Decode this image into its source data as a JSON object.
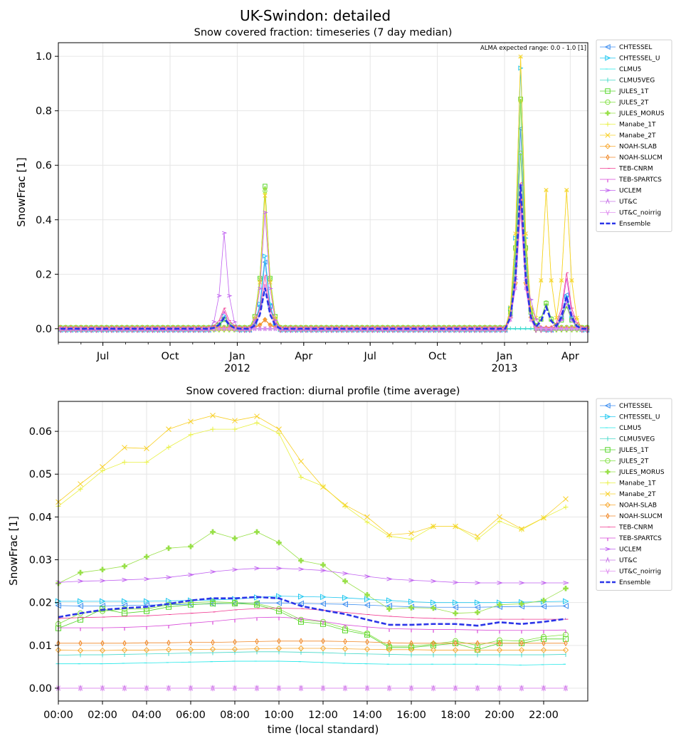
{
  "suptitle": "UK-Swindon: detailed",
  "colors": {
    "CHTESSEL": "#3d8ef0",
    "CHTESSEL_U": "#22c8f0",
    "CLMU5": "#22e8e8",
    "CLMU5VEG": "#46d8c8",
    "JULES_1T": "#56d62a",
    "JULES_2T": "#80e040",
    "JULES_MORUS": "#98e048",
    "Manabe_1T": "#e8f040",
    "Manabe_2T": "#f8d028",
    "NOAH-SLAB": "#f8a830",
    "NOAH-SLUCM": "#f08828",
    "TEB-CNRM": "#f03890",
    "TEB-SPARTCS": "#d848d8",
    "UCLEM": "#c060f0",
    "UT&C": "#c878e8",
    "UT&C_noirrig": "#e090f0",
    "Ensemble": "#2b35e8",
    "grid": "#e6e6e6",
    "axis": "#000000"
  },
  "legend": [
    {
      "name": "CHTESSEL",
      "icon": "triangle-left-marker"
    },
    {
      "name": "CHTESSEL_U",
      "icon": "triangle-right-marker"
    },
    {
      "name": "CLMU5",
      "icon": "tickleft-marker"
    },
    {
      "name": "CLMU5VEG",
      "icon": "vline-marker"
    },
    {
      "name": "JULES_1T",
      "icon": "square-marker"
    },
    {
      "name": "JULES_2T",
      "icon": "circle-marker"
    },
    {
      "name": "JULES_MORUS",
      "icon": "plus-filled-marker"
    },
    {
      "name": "Manabe_1T",
      "icon": "plus-marker"
    },
    {
      "name": "Manabe_2T",
      "icon": "x-marker"
    },
    {
      "name": "NOAH-SLAB",
      "icon": "diamond-marker"
    },
    {
      "name": "NOAH-SLUCM",
      "icon": "thin-diamond-marker"
    },
    {
      "name": "TEB-CNRM",
      "icon": "tickright-marker"
    },
    {
      "name": "TEB-SPARTCS",
      "icon": "tickdown-marker"
    },
    {
      "name": "UCLEM",
      "icon": "caret-right-marker"
    },
    {
      "name": "UT&C",
      "icon": "caret-up-marker"
    },
    {
      "name": "UT&C_noirrig",
      "icon": "caret-down-marker"
    },
    {
      "name": "Ensemble",
      "icon": "dashed-line"
    }
  ],
  "chart_data": [
    {
      "type": "line",
      "title": "Snow covered fraction: timeseries (7 day median)",
      "annotation": "ALMA expected range: 0.0 - 1.0 [1]",
      "xlabel": "",
      "ylabel": "SnowFrac [1]",
      "xlim": [
        "2011-05-01",
        "2013-04-25"
      ],
      "ylim": [
        -0.05,
        1.05
      ],
      "grid": true,
      "legend_position": "outside-right",
      "xticks": [
        {
          "date": "2011-07-01",
          "label": "Jul",
          "sub": ""
        },
        {
          "date": "2011-10-01",
          "label": "Oct",
          "sub": ""
        },
        {
          "date": "2012-01-01",
          "label": "Jan",
          "sub": "2012"
        },
        {
          "date": "2012-04-01",
          "label": "Apr",
          "sub": ""
        },
        {
          "date": "2012-07-01",
          "label": "Jul",
          "sub": ""
        },
        {
          "date": "2012-10-01",
          "label": "Oct",
          "sub": ""
        },
        {
          "date": "2013-01-01",
          "label": "Jan",
          "sub": "2013"
        },
        {
          "date": "2013-04-01",
          "label": "Apr",
          "sub": ""
        }
      ],
      "yticks": [
        0.0,
        0.2,
        0.4,
        0.6,
        0.8,
        1.0
      ],
      "ytick_labels": [
        "0.0",
        "0.2",
        "0.4",
        "0.6",
        "0.8",
        "1.0"
      ],
      "events": [
        {
          "date": "2011-12-15",
          "values": {
            "CHTESSEL": 0.04,
            "CHTESSEL_U": 0.05,
            "UCLEM": 0.355,
            "TEB-CNRM": 0.07,
            "TEB-SPARTCS": 0.07,
            "JULES_1T": 0.03,
            "Ensemble": 0.04
          }
        },
        {
          "date": "2012-02-08",
          "values": {
            "CHTESSEL": 0.25,
            "CHTESSEL_U": 0.27,
            "JULES_1T": 0.52,
            "JULES_2T": 0.5,
            "JULES_MORUS": 0.52,
            "Manabe_1T": 0.5,
            "Manabe_2T": 0.49,
            "UCLEM": 0.43,
            "TEB-CNRM": 0.19,
            "TEB-SPARTCS": 0.17,
            "NOAH-SLAB": 0.03,
            "NOAH-SLUCM": 0.03,
            "Ensemble": 0.15
          }
        },
        {
          "date": "2013-01-20",
          "values": {
            "CHTESSEL": 0.74,
            "CHTESSEL_U": 0.96,
            "JULES_1T": 0.84,
            "JULES_2T": 0.64,
            "JULES_MORUS": 0.84,
            "Manabe_1T": 1.0,
            "Manabe_2T": 1.0,
            "NOAH-SLAB": 0.47,
            "NOAH-SLUCM": 0.46,
            "TEB-CNRM": 0.53,
            "TEB-SPARTCS": 0.5,
            "UCLEM": 0.53,
            "UT&C": 0.43,
            "UT&C_noirrig": 0.42,
            "Ensemble": 0.53
          }
        },
        {
          "date": "2013-02-05",
          "values": {
            "CHTESSEL": 0.04,
            "CHTESSEL_U": 0.04,
            "UCLEM": 0.11,
            "Ensemble": 0.02
          }
        },
        {
          "date": "2013-02-25",
          "values": {
            "JULES_1T": 0.09,
            "JULES_2T": 0.09,
            "Manabe_1T": 0.51,
            "Manabe_2T": 0.51,
            "Ensemble": 0.08
          }
        },
        {
          "date": "2013-03-24",
          "values": {
            "CHTESSEL": 0.13,
            "CHTESSEL_U": 0.12,
            "Manabe_1T": 0.51,
            "Manabe_2T": 0.51,
            "JULES_1T": 0.08,
            "TEB-CNRM": 0.2,
            "TEB-SPARTCS": 0.19,
            "UCLEM": 0.1,
            "Ensemble": 0.12
          }
        }
      ]
    },
    {
      "type": "line",
      "title": "Snow covered fraction: diurnal profile (time average)",
      "xlabel": "time (local standard)",
      "ylabel": "SnowFrac [1]",
      "xlim": [
        0,
        24
      ],
      "ylim": [
        -0.003,
        0.067
      ],
      "grid": true,
      "legend_position": "outside-right",
      "xticks": [
        0,
        2,
        4,
        6,
        8,
        10,
        12,
        14,
        16,
        18,
        20,
        22
      ],
      "xtick_labels": [
        "00:00",
        "02:00",
        "04:00",
        "06:00",
        "08:00",
        "10:00",
        "12:00",
        "14:00",
        "16:00",
        "18:00",
        "20:00",
        "22:00"
      ],
      "yticks": [
        0.0,
        0.01,
        0.02,
        0.03,
        0.04,
        0.05,
        0.06
      ],
      "ytick_labels": [
        "0.00",
        "0.01",
        "0.02",
        "0.03",
        "0.04",
        "0.05",
        "0.06"
      ],
      "x": [
        0,
        1,
        2,
        3,
        4,
        5,
        6,
        7,
        8,
        9,
        10,
        11,
        12,
        13,
        14,
        15,
        16,
        17,
        18,
        19,
        20,
        21,
        22,
        23
      ],
      "series": [
        {
          "name": "CHTESSEL",
          "values": [
            0.0193,
            0.0192,
            0.0192,
            0.0193,
            0.0194,
            0.0195,
            0.0196,
            0.0197,
            0.0198,
            0.0199,
            0.0199,
            0.0198,
            0.0197,
            0.0196,
            0.0194,
            0.0192,
            0.019,
            0.0189,
            0.0189,
            0.0189,
            0.019,
            0.0191,
            0.0191,
            0.0192
          ]
        },
        {
          "name": "CHTESSEL_U",
          "values": [
            0.0203,
            0.0203,
            0.0203,
            0.0203,
            0.0203,
            0.0204,
            0.0205,
            0.0206,
            0.0208,
            0.0212,
            0.0215,
            0.0214,
            0.0213,
            0.0211,
            0.0208,
            0.0205,
            0.0202,
            0.02,
            0.02,
            0.02,
            0.02,
            0.0201,
            0.0202,
            0.0203
          ]
        },
        {
          "name": "CLMU5",
          "values": [
            0.0057,
            0.0057,
            0.0057,
            0.0058,
            0.0059,
            0.006,
            0.0061,
            0.0062,
            0.0063,
            0.0063,
            0.0063,
            0.0062,
            0.006,
            0.0058,
            0.0057,
            0.0056,
            0.0056,
            0.0056,
            0.0056,
            0.0056,
            0.0055,
            0.0054,
            0.0055,
            0.0056
          ]
        },
        {
          "name": "CLMU5VEG",
          "values": [
            0.0077,
            0.0078,
            0.0078,
            0.0079,
            0.008,
            0.0081,
            0.0082,
            0.0083,
            0.0084,
            0.0085,
            0.0085,
            0.0084,
            0.0083,
            0.0081,
            0.008,
            0.0079,
            0.0078,
            0.0078,
            0.0078,
            0.0078,
            0.0078,
            0.0078,
            0.0078,
            0.0079
          ]
        },
        {
          "name": "JULES_1T",
          "values": [
            0.014,
            0.016,
            0.0185,
            0.0175,
            0.018,
            0.019,
            0.0195,
            0.0198,
            0.0198,
            0.0195,
            0.018,
            0.0155,
            0.015,
            0.0135,
            0.0125,
            0.0095,
            0.0095,
            0.01,
            0.0105,
            0.009,
            0.0105,
            0.0105,
            0.0115,
            0.0115
          ]
        },
        {
          "name": "JULES_2T",
          "values": [
            0.015,
            0.0175,
            0.018,
            0.0185,
            0.0185,
            0.0195,
            0.02,
            0.0202,
            0.02,
            0.0198,
            0.0185,
            0.016,
            0.0155,
            0.014,
            0.0128,
            0.0098,
            0.0098,
            0.0103,
            0.011,
            0.01,
            0.0112,
            0.011,
            0.012,
            0.0125
          ]
        },
        {
          "name": "JULES_MORUS",
          "values": [
            0.0245,
            0.027,
            0.0277,
            0.0285,
            0.0307,
            0.0327,
            0.0331,
            0.0365,
            0.035,
            0.0365,
            0.034,
            0.0298,
            0.0288,
            0.025,
            0.0218,
            0.0185,
            0.0188,
            0.0187,
            0.0175,
            0.0177,
            0.0195,
            0.0197,
            0.0205,
            0.0233
          ]
        },
        {
          "name": "Manabe_1T",
          "values": [
            0.0425,
            0.0465,
            0.0508,
            0.0528,
            0.0528,
            0.0563,
            0.0592,
            0.0605,
            0.0605,
            0.062,
            0.0595,
            0.0493,
            0.0472,
            0.0425,
            0.0388,
            0.0355,
            0.0348,
            0.0378,
            0.0378,
            0.0348,
            0.039,
            0.037,
            0.0398,
            0.0423
          ]
        },
        {
          "name": "Manabe_2T",
          "values": [
            0.0435,
            0.0477,
            0.0517,
            0.0562,
            0.056,
            0.0605,
            0.0623,
            0.0637,
            0.0625,
            0.0635,
            0.0605,
            0.053,
            0.047,
            0.0428,
            0.04,
            0.0358,
            0.0362,
            0.0378,
            0.0378,
            0.0355,
            0.04,
            0.0372,
            0.0398,
            0.0442
          ]
        },
        {
          "name": "NOAH-SLAB",
          "values": [
            0.0089,
            0.0088,
            0.0088,
            0.0089,
            0.0089,
            0.009,
            0.009,
            0.0091,
            0.0091,
            0.0092,
            0.0093,
            0.0093,
            0.0093,
            0.0092,
            0.0091,
            0.009,
            0.009,
            0.0089,
            0.0089,
            0.0089,
            0.0089,
            0.0089,
            0.0089,
            0.0089
          ]
        },
        {
          "name": "NOAH-SLUCM",
          "values": [
            0.0105,
            0.0105,
            0.0105,
            0.0105,
            0.0106,
            0.0106,
            0.0107,
            0.0107,
            0.0108,
            0.0109,
            0.011,
            0.011,
            0.011,
            0.0109,
            0.0108,
            0.0106,
            0.0105,
            0.0105,
            0.0105,
            0.0105,
            0.0105,
            0.0105,
            0.0105,
            0.0105
          ]
        },
        {
          "name": "TEB-CNRM",
          "values": [
            0.0163,
            0.0165,
            0.0166,
            0.0168,
            0.0169,
            0.0172,
            0.0175,
            0.0178,
            0.0183,
            0.0186,
            0.0187,
            0.0186,
            0.0182,
            0.0177,
            0.0172,
            0.0168,
            0.0165,
            0.0163,
            0.0162,
            0.0161,
            0.0161,
            0.0161,
            0.0161,
            0.0161
          ]
        },
        {
          "name": "TEB-SPARTCS",
          "values": [
            0.0141,
            0.0141,
            0.0141,
            0.0142,
            0.0144,
            0.0147,
            0.0152,
            0.0156,
            0.0161,
            0.0165,
            0.0166,
            0.0163,
            0.0156,
            0.0148,
            0.0143,
            0.0139,
            0.0138,
            0.0137,
            0.0137,
            0.0136,
            0.0135,
            0.0135,
            0.0135,
            0.0136
          ]
        },
        {
          "name": "UCLEM",
          "values": [
            0.0247,
            0.025,
            0.0251,
            0.0253,
            0.0255,
            0.0259,
            0.0265,
            0.0272,
            0.0277,
            0.028,
            0.028,
            0.0278,
            0.0275,
            0.0268,
            0.0261,
            0.0255,
            0.0252,
            0.025,
            0.0247,
            0.0246,
            0.0246,
            0.0246,
            0.0246,
            0.0246
          ]
        },
        {
          "name": "UT&C",
          "values": [
            0.0,
            0.0,
            0.0,
            0.0,
            0.0,
            0.0,
            0.0,
            0.0,
            0.0,
            0.0,
            0.0,
            0.0,
            0.0,
            0.0,
            0.0,
            0.0,
            0.0,
            0.0,
            0.0,
            0.0,
            0.0,
            0.0,
            0.0,
            0.0
          ]
        },
        {
          "name": "UT&C_noirrig",
          "values": [
            0.0,
            0.0,
            0.0,
            0.0,
            0.0,
            0.0,
            0.0,
            0.0,
            0.0,
            0.0,
            0.0,
            0.0,
            0.0,
            0.0,
            0.0,
            0.0,
            0.0,
            0.0,
            0.0,
            0.0,
            0.0,
            0.0,
            0.0,
            0.0
          ]
        },
        {
          "name": "Ensemble",
          "values": [
            0.0166,
            0.0175,
            0.0183,
            0.0187,
            0.019,
            0.0197,
            0.0205,
            0.021,
            0.021,
            0.0213,
            0.021,
            0.0192,
            0.0182,
            0.0173,
            0.016,
            0.0148,
            0.0148,
            0.015,
            0.015,
            0.0146,
            0.0154,
            0.015,
            0.0155,
            0.0162
          ]
        }
      ]
    }
  ]
}
